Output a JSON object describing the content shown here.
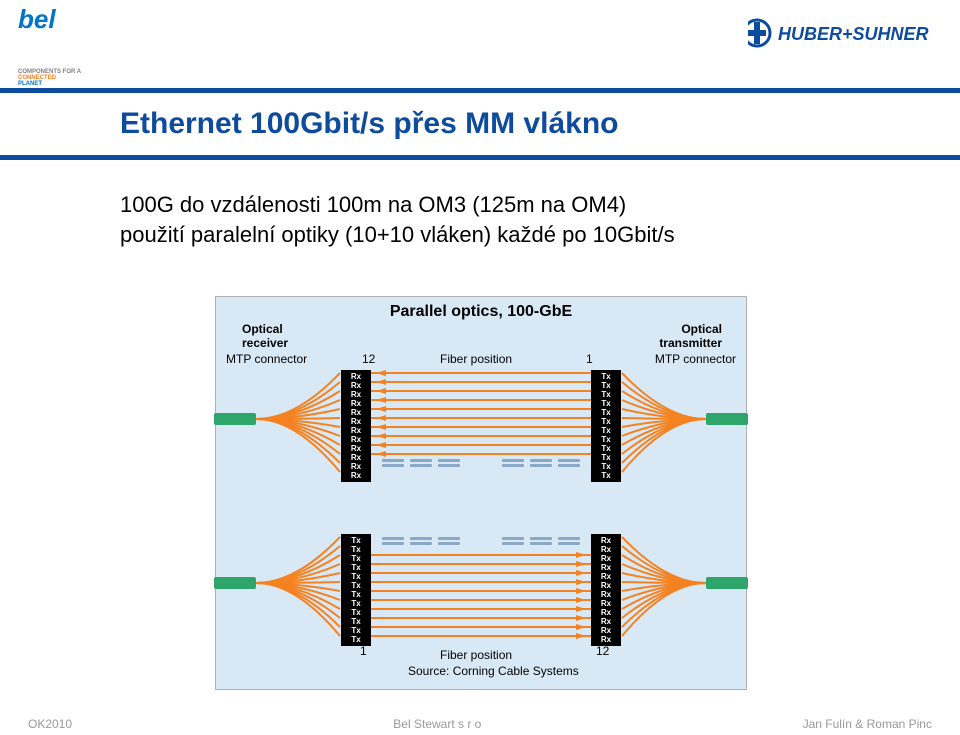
{
  "logos": {
    "left": {
      "brand_text": "bel",
      "tagline1": "COMPONENTS FOR A",
      "tagline2": "CONNECTED",
      "tagline3": "PLANET",
      "brand_color": "#0075c9",
      "tagline1_color": "#808080",
      "tagline2_color": "#f58220",
      "tagline3_color": "#0075c9"
    },
    "right": {
      "text": "HUBER+SUHNER",
      "color": "#0d4b9e"
    }
  },
  "title": "Ethernet 100Gbit/s přes MM vlákno",
  "title_color": "#0d4b9e",
  "bar_color": "#0d4b9e",
  "body": {
    "line1": "100G do vzdálenosti 100m na OM3 (125m na OM4)",
    "line2": "použití paralelní optiky (10+10 vláken) každé po 10Gbit/s"
  },
  "diagram": {
    "bg_color": "#d9e8f5",
    "title": "Parallel optics, 100-GbE",
    "left_top_label1": "Optical",
    "left_top_label2": "receiver",
    "left_top_label3": "MTP connector",
    "right_top_label1": "Optical",
    "right_top_label2": "transmitter",
    "right_top_label3": "MTP connector",
    "fiber_pos": "Fiber position",
    "num12": "12",
    "num1": "1",
    "source": "Source: Corning Cable Systems",
    "rx": "Rx",
    "tx": "Tx",
    "fiber_color": "#f58220",
    "green_color": "#2ea56a",
    "dash_color": "#8aa9c7"
  },
  "footer": {
    "left": "OK2010",
    "center": "Bel Stewart s r o",
    "right": "Jan Fulín &  Roman Pinc"
  }
}
